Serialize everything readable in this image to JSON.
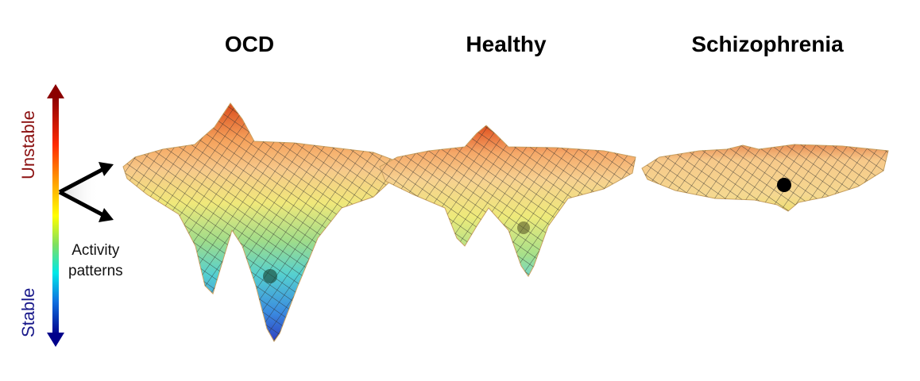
{
  "titles": {
    "ocd": "OCD",
    "healthy": "Healthy",
    "schizophrenia": "Schizophrenia"
  },
  "scale": {
    "top_label": "Unstable",
    "bottom_label": "Stable",
    "top_color": "#8b1010",
    "bottom_color": "#1a1a8b"
  },
  "activity": {
    "line1": "Activity",
    "line2": "patterns"
  },
  "colors": {
    "peak": "#d94a1a",
    "rim": "#f7c98a",
    "mid": "#f0e87a",
    "low": "#55d0d0",
    "deep": "#3040c0",
    "ball": "#000000"
  }
}
